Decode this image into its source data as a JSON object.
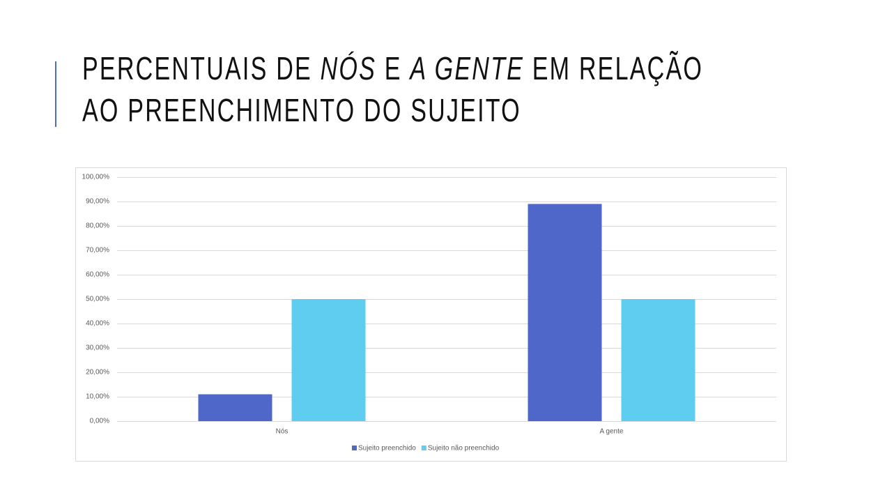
{
  "slide": {
    "title_lines": [
      [
        "PERCENTUAIS DE ",
        "NÓS",
        " E ",
        "A GENTE",
        " EM RELAÇÃO"
      ],
      [
        "AO PREENCHIMENTO DO SUJEITO"
      ]
    ]
  },
  "chart_data": {
    "type": "bar",
    "categories": [
      "Nós",
      "A gente"
    ],
    "series": [
      {
        "name": "Sujeito preenchido",
        "color": "#4f67c9",
        "values": [
          11,
          89
        ]
      },
      {
        "name": "Sujeito não preenchido",
        "color": "#5ecdf0",
        "values": [
          50,
          50
        ]
      }
    ],
    "ylim": [
      0,
      100
    ],
    "yticks": [
      {
        "value": 0,
        "label": "0,00%"
      },
      {
        "value": 10,
        "label": "10,00%"
      },
      {
        "value": 20,
        "label": "20,00%"
      },
      {
        "value": 30,
        "label": "30,00%"
      },
      {
        "value": 40,
        "label": "40,00%"
      },
      {
        "value": 50,
        "label": "50,00%"
      },
      {
        "value": 60,
        "label": "60,00%"
      },
      {
        "value": 70,
        "label": "70,00%"
      },
      {
        "value": 80,
        "label": "80,00%"
      },
      {
        "value": 90,
        "label": "90,00%"
      },
      {
        "value": 100,
        "label": "100,00%"
      }
    ],
    "grid": true,
    "legend": "bottom"
  }
}
